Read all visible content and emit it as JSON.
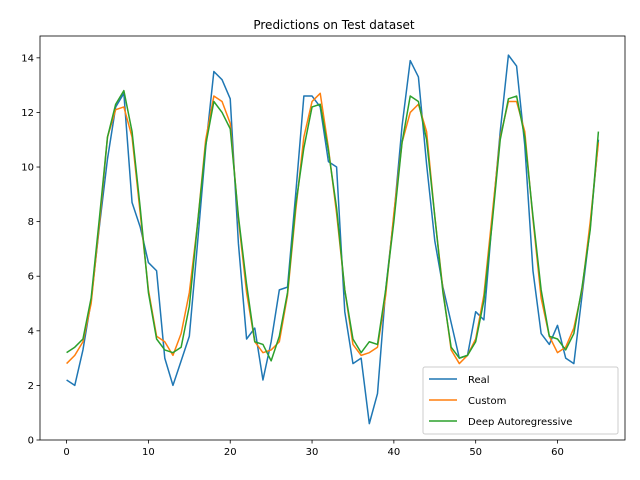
{
  "chart_data": {
    "type": "line",
    "title": "Predictions on Test dataset",
    "xlabel": "",
    "ylabel": "",
    "xlim": [
      -3.25,
      68.25
    ],
    "ylim": [
      0,
      14.8
    ],
    "x_ticks": [
      0,
      10,
      20,
      30,
      40,
      50,
      60
    ],
    "y_ticks": [
      0,
      2,
      4,
      6,
      8,
      10,
      12,
      14
    ],
    "legend_position": "lower-right",
    "grid": false,
    "series": [
      {
        "name": "Real",
        "color": "#1f77b4",
        "values": [
          2.2,
          2.0,
          3.3,
          5.1,
          7.8,
          10.3,
          12.2,
          12.7,
          8.7,
          7.8,
          6.5,
          6.2,
          3.0,
          2.0,
          2.9,
          3.8,
          7.2,
          10.7,
          13.5,
          13.2,
          12.5,
          7.2,
          3.7,
          4.1,
          2.2,
          3.6,
          5.5,
          5.6,
          9.0,
          12.6,
          12.6,
          12.2,
          10.2,
          10.0,
          4.7,
          2.8,
          3.0,
          0.6,
          1.7,
          5.5,
          8.2,
          11.5,
          13.9,
          13.3,
          10.1,
          7.3,
          5.6,
          4.3,
          3.0,
          3.1,
          4.7,
          4.4,
          8.0,
          11.3,
          14.1,
          13.7,
          10.8,
          6.2,
          3.9,
          3.5,
          4.2,
          3.0,
          2.8,
          5.3,
          7.8,
          11.0
        ]
      },
      {
        "name": "Custom",
        "color": "#ff7f0e",
        "values": [
          2.8,
          3.1,
          3.6,
          5.0,
          7.9,
          11.1,
          12.1,
          12.2,
          11.1,
          8.3,
          5.5,
          3.8,
          3.6,
          3.1,
          3.9,
          5.4,
          7.9,
          11.0,
          12.6,
          12.4,
          11.6,
          8.1,
          5.4,
          3.6,
          3.2,
          3.3,
          3.6,
          5.3,
          8.4,
          11.1,
          12.4,
          12.7,
          10.7,
          8.3,
          5.5,
          3.5,
          3.1,
          3.2,
          3.4,
          5.3,
          8.3,
          10.9,
          12.0,
          12.3,
          11.3,
          8.2,
          5.5,
          3.3,
          2.8,
          3.1,
          3.7,
          5.3,
          8.2,
          11.1,
          12.4,
          12.4,
          11.3,
          8.1,
          5.2,
          3.8,
          3.2,
          3.4,
          4.1,
          5.5,
          8.0,
          10.9
        ]
      },
      {
        "name": "Deep Autoregressive",
        "color": "#2ca02c",
        "values": [
          3.2,
          3.4,
          3.7,
          5.2,
          8.1,
          11.1,
          12.3,
          12.8,
          11.3,
          8.5,
          5.4,
          3.7,
          3.3,
          3.2,
          3.4,
          4.9,
          7.9,
          10.8,
          12.4,
          12.0,
          11.4,
          8.2,
          5.7,
          3.6,
          3.5,
          2.9,
          3.8,
          5.4,
          8.6,
          10.7,
          12.2,
          12.3,
          10.6,
          8.5,
          5.5,
          3.7,
          3.2,
          3.6,
          3.5,
          5.5,
          8.0,
          10.9,
          12.6,
          12.4,
          11.0,
          8.2,
          5.4,
          3.4,
          3.0,
          3.1,
          3.6,
          5.1,
          7.9,
          11.0,
          12.5,
          12.6,
          11.1,
          8.2,
          5.5,
          3.8,
          3.7,
          3.3,
          3.9,
          5.6,
          7.7,
          11.3
        ]
      }
    ]
  }
}
